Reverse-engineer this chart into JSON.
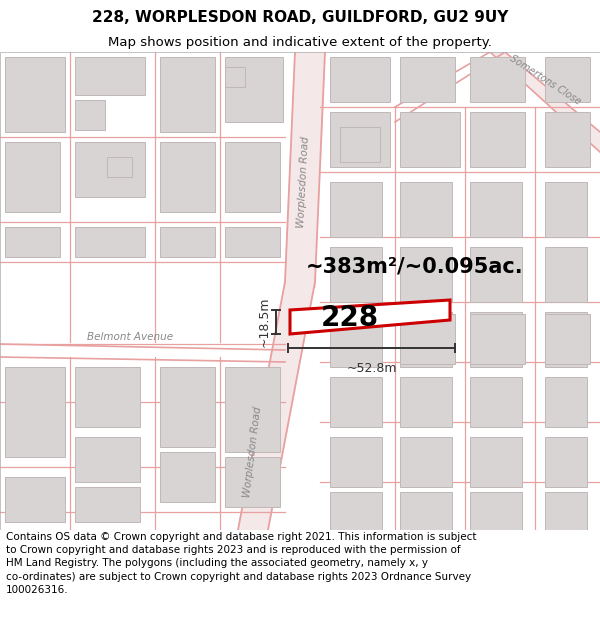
{
  "title_line1": "228, WORPLESDON ROAD, GUILDFORD, GU2 9UY",
  "title_line2": "Map shows position and indicative extent of the property.",
  "footer_text": "Contains OS data © Crown copyright and database right 2021. This information is subject to Crown copyright and database rights 2023 and is reproduced with the permission of HM Land Registry. The polygons (including the associated geometry, namely x, y co-ordinates) are subject to Crown copyright and database rights 2023 Ordnance Survey 100026316.",
  "area_text": "~383m²/~0.095ac.",
  "width_label": "~52.8m",
  "height_label": "~18.5m",
  "property_number": "228",
  "bg_color": "#ffffff",
  "map_bg": "#ffffff",
  "road_outline_color": "#e8a0a0",
  "road_fill_color": "#f5e8e8",
  "building_fill": "#d8d4d4",
  "building_edge": "#c0b8b8",
  "property_fill": "#ffffff",
  "property_edge": "#cc0000",
  "dim_line_color": "#333333",
  "text_color": "#000000",
  "road_label_color": "#888888",
  "title_fontsize": 11,
  "subtitle_fontsize": 9.5,
  "footer_fontsize": 7.5,
  "area_fontsize": 15,
  "dim_fontsize": 9,
  "prop_num_fontsize": 20,
  "road_label_fontsize": 7.5
}
